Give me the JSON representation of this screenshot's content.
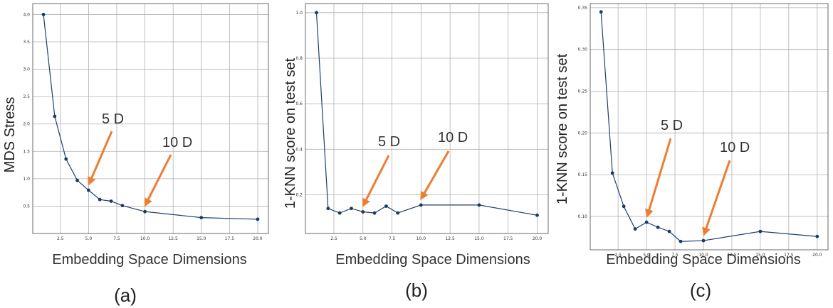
{
  "colors": {
    "line": "#1f3f6b",
    "marker": "#173a63",
    "grid": "#b0b0b0",
    "arrow": "#ed7d31",
    "frame": "#444444"
  },
  "chart_data": [
    {
      "type": "line",
      "panel_label": "(a)",
      "xlabel": "Embedding Space Dimensions",
      "ylabel": "MDS Stress",
      "xlim": [
        0.05,
        20.95
      ],
      "ylim": [
        0.0,
        4.2
      ],
      "xticks": [
        2.5,
        5.0,
        7.5,
        10.0,
        12.5,
        15.0,
        17.5,
        20.0
      ],
      "xtick_labels": [
        "2.5",
        "5.0",
        "7.5",
        "10.0",
        "12.5",
        "15.0",
        "17.5",
        "20.0"
      ],
      "yticks": [
        0.5,
        1.0,
        1.5,
        2.0,
        2.5,
        3.0,
        3.5,
        4.0
      ],
      "ytick_labels": [
        "0.5",
        "1.0",
        "1.5",
        "2.0",
        "2.5",
        "3.0",
        "3.5",
        "4.0"
      ],
      "grid": true,
      "x": [
        1,
        2,
        3,
        4,
        5,
        6,
        7,
        8,
        10,
        15,
        20
      ],
      "y": [
        4.0,
        2.14,
        1.36,
        0.97,
        0.79,
        0.62,
        0.59,
        0.51,
        0.4,
        0.29,
        0.26
      ],
      "annotations": [
        {
          "text": "5 D",
          "point_x": 5,
          "point_y": 0.79
        },
        {
          "text": "10 D",
          "point_x": 10,
          "point_y": 0.4
        }
      ]
    },
    {
      "type": "line",
      "panel_label": "(b)",
      "xlabel": "Embedding Space Dimensions",
      "ylabel": "1-KNN score on test set",
      "xlim": [
        0.05,
        20.95
      ],
      "ylim": [
        0.03,
        1.04
      ],
      "xticks": [
        2.5,
        5.0,
        7.5,
        10.0,
        12.5,
        15.0,
        17.5,
        20.0
      ],
      "xtick_labels": [
        "2.5",
        "5.0",
        "7.5",
        "10.0",
        "12.5",
        "15.0",
        "17.5",
        "20.0"
      ],
      "yticks": [
        0.2,
        0.4,
        0.6,
        0.8,
        1.0
      ],
      "ytick_labels": [
        "0.2",
        "0.4",
        "0.6",
        "0.8",
        "1.0"
      ],
      "grid": true,
      "x": [
        1,
        2,
        3,
        4,
        5,
        6,
        7,
        8,
        10,
        15,
        20
      ],
      "y": [
        1.0,
        0.14,
        0.12,
        0.14,
        0.125,
        0.12,
        0.15,
        0.12,
        0.155,
        0.155,
        0.11
      ],
      "annotations": [
        {
          "text": "5 D",
          "point_x": 5,
          "point_y": 0.125
        },
        {
          "text": "10 D",
          "point_x": 10,
          "point_y": 0.155
        }
      ]
    },
    {
      "type": "line",
      "panel_label": "(c)",
      "xlabel": "Embedding Space Dimensions",
      "ylabel": "1-KNN score on test set",
      "xlim": [
        0.05,
        20.95
      ],
      "ylim": [
        0.06,
        0.355
      ],
      "xticks": [
        2.5,
        5.0,
        7.5,
        10.0,
        12.5,
        15.0,
        17.5,
        20.0
      ],
      "xtick_labels": [
        "2.5",
        "5.0",
        "7.5",
        "10.0",
        "12.5",
        "15.0",
        "17.5",
        "20.0"
      ],
      "yticks": [
        0.1,
        0.15,
        0.2,
        0.25,
        0.3,
        0.35
      ],
      "ytick_labels": [
        "0.10",
        "0.15",
        "0.20",
        "0.25",
        "0.30",
        "0.35"
      ],
      "grid": true,
      "x": [
        1,
        2,
        3,
        4,
        5,
        6,
        7,
        8,
        10,
        15,
        20
      ],
      "y": [
        0.345,
        0.152,
        0.112,
        0.085,
        0.093,
        0.087,
        0.082,
        0.07,
        0.071,
        0.082,
        0.076
      ],
      "annotations": [
        {
          "text": "5 D",
          "point_x": 5,
          "point_y": 0.093
        },
        {
          "text": "10 D",
          "point_x": 10,
          "point_y": 0.071
        }
      ]
    }
  ]
}
